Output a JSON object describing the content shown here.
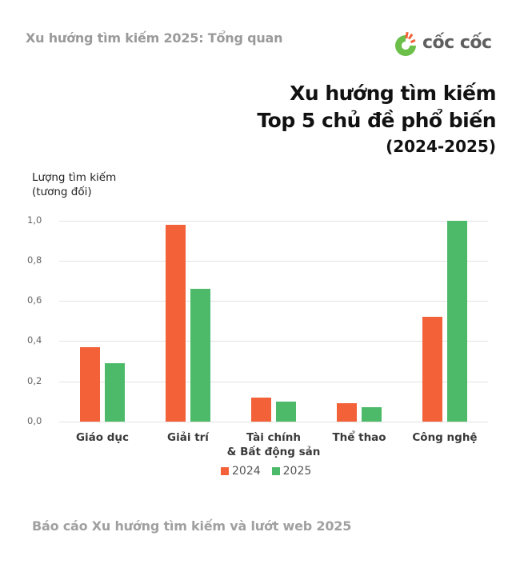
{
  "header": {
    "subtitle": "Xu hướng tìm kiếm 2025: Tổng quan",
    "logo_text": "cốc cốc"
  },
  "title": {
    "line1": "Xu hướng tìm kiếm",
    "line2": "Top 5 chủ đề phổ biến",
    "line3": "(2024-2025)"
  },
  "footer": {
    "text": "Báo cáo Xu hướng tìm kiếm và lướt web 2025"
  },
  "colors": {
    "series_2024": "#F26138",
    "series_2025": "#4DBA69",
    "grid": "#E2E2E2",
    "brand_green": "#6CC04A"
  },
  "chart_data": {
    "type": "bar",
    "title": "Xu hướng tìm kiếm Top 5 chủ đề phổ biến (2024-2025)",
    "xlabel": "",
    "ylabel": "Lượng tìm kiếm (tương đối)",
    "ylabel_lines": [
      "Lượng tìm kiếm",
      "(tương đối)"
    ],
    "ylim": [
      0,
      1.0
    ],
    "yticks": [
      "0,0",
      "0,2",
      "0,4",
      "0,6",
      "0,8",
      "1,0"
    ],
    "grid": true,
    "legend_position": "bottom",
    "categories": [
      "Giáo dục",
      "Giải trí",
      "Tài chính & Bất động sản",
      "Thể thao",
      "Công nghệ"
    ],
    "category_lines": [
      [
        "Giáo dục"
      ],
      [
        "Giải trí"
      ],
      [
        "Tài chính",
        "& Bất động sản"
      ],
      [
        "Thể thao"
      ],
      [
        "Công nghệ"
      ]
    ],
    "series": [
      {
        "name": "2024",
        "values": [
          0.37,
          0.98,
          0.12,
          0.09,
          0.52
        ]
      },
      {
        "name": "2025",
        "values": [
          0.29,
          0.66,
          0.1,
          0.07,
          1.0
        ]
      }
    ]
  }
}
